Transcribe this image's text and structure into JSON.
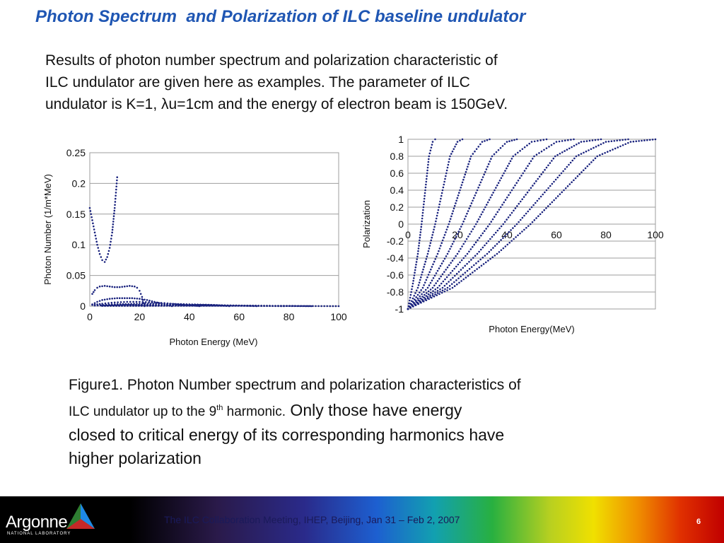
{
  "slide": {
    "title": "Photon Spectrum  and Polarization of ILC baseline undulator",
    "intro_lines": [
      "Results of photon number spectrum and polarization characteristic of",
      "ILC undulator are given here as examples.   The parameter of ILC",
      "undulator is K=1, λu=1cm and the energy of electron beam is 150GeV."
    ]
  },
  "chart_data": [
    {
      "type": "scatter",
      "xlabel": "Photon Energy (MeV)",
      "ylabel": "Photon Number (1/m*MeV)",
      "xlim": [
        0,
        100
      ],
      "ylim": [
        0,
        0.25
      ],
      "xticks": [
        "0",
        "20",
        "40",
        "60",
        "80",
        "100"
      ],
      "yticks": [
        "0",
        "0.05",
        "0.1",
        "0.15",
        "0.2",
        "0.25"
      ],
      "grid": true,
      "color": "#1a237e",
      "series": [
        {
          "x": [
            0,
            1,
            2,
            3,
            4,
            5,
            6,
            7,
            8,
            9,
            10,
            10.5,
            11
          ],
          "values": [
            0.16,
            0.14,
            0.12,
            0.1,
            0.085,
            0.075,
            0.072,
            0.08,
            0.095,
            0.12,
            0.16,
            0.185,
            0.21
          ]
        },
        {
          "x": [
            1,
            2,
            3,
            4,
            6,
            8,
            10,
            12,
            14,
            16,
            18,
            19,
            20,
            21,
            22
          ],
          "values": [
            0.02,
            0.026,
            0.03,
            0.032,
            0.033,
            0.032,
            0.031,
            0.031,
            0.032,
            0.033,
            0.032,
            0.03,
            0.025,
            0.015,
            0
          ]
        },
        {
          "x": [
            1,
            3,
            5,
            8,
            11,
            14,
            17,
            20,
            23,
            26,
            29,
            31,
            33
          ],
          "values": [
            0.003,
            0.007,
            0.01,
            0.012,
            0.013,
            0.013,
            0.013,
            0.012,
            0.01,
            0.007,
            0.004,
            0.002,
            0
          ]
        },
        {
          "x": [
            1,
            5,
            10,
            15,
            20,
            25,
            30,
            35,
            40,
            44
          ],
          "values": [
            0.002,
            0.004,
            0.006,
            0.007,
            0.007,
            0.006,
            0.005,
            0.003,
            0.002,
            0
          ]
        },
        {
          "x": [
            2,
            10,
            20,
            30,
            40,
            50,
            56
          ],
          "values": [
            0.001,
            0.003,
            0.004,
            0.004,
            0.003,
            0.002,
            0
          ]
        },
        {
          "x": [
            2,
            15,
            30,
            45,
            60,
            67
          ],
          "values": [
            0.001,
            0.002,
            0.002,
            0.002,
            0.001,
            0
          ]
        },
        {
          "x": [
            5,
            20,
            40,
            60,
            78
          ],
          "values": [
            0.001,
            0.001,
            0.001,
            0.001,
            0
          ]
        },
        {
          "x": [
            5,
            30,
            60,
            89
          ],
          "values": [
            0.0005,
            0.001,
            0.0008,
            0
          ]
        },
        {
          "x": [
            5,
            40,
            70,
            100
          ],
          "values": [
            0.0005,
            0.0006,
            0.0005,
            0
          ]
        }
      ]
    },
    {
      "type": "scatter",
      "xlabel": "Photon Energy(MeV)",
      "ylabel": "Polarization",
      "xlim": [
        0,
        100
      ],
      "ylim": [
        -1,
        1
      ],
      "xticks": [
        "0",
        "20",
        "40",
        "60",
        "80",
        "100"
      ],
      "yticks": [
        "1",
        "0.8",
        "0.6",
        "0.4",
        "0.2",
        "0",
        "-0.2",
        "-0.4",
        "-0.6",
        "-0.8",
        "-1"
      ],
      "grid": true,
      "color": "#1a237e",
      "series": [
        {
          "x": [
            0,
            2,
            4,
            5.5,
            7,
            8.5,
            10,
            11
          ],
          "values": [
            -1,
            -0.7,
            -0.35,
            0,
            0.4,
            0.8,
            0.97,
            1
          ]
        },
        {
          "x": [
            0,
            4,
            8,
            11,
            14,
            17,
            20,
            22
          ],
          "values": [
            -1,
            -0.75,
            -0.35,
            0,
            0.4,
            0.8,
            0.97,
            1
          ]
        },
        {
          "x": [
            0,
            6,
            12,
            16.5,
            21,
            25.5,
            30,
            33
          ],
          "values": [
            -1,
            -0.75,
            -0.35,
            0,
            0.4,
            0.8,
            0.97,
            1
          ]
        },
        {
          "x": [
            0,
            8,
            16,
            22,
            28,
            34,
            40,
            44
          ],
          "values": [
            -1,
            -0.75,
            -0.35,
            0,
            0.4,
            0.8,
            0.97,
            1
          ]
        },
        {
          "x": [
            0,
            10,
            20,
            27.5,
            35,
            42.5,
            50,
            56
          ],
          "values": [
            -1,
            -0.75,
            -0.35,
            0,
            0.4,
            0.8,
            0.97,
            1
          ]
        },
        {
          "x": [
            0,
            12,
            24,
            33,
            42,
            51,
            60,
            67
          ],
          "values": [
            -1,
            -0.75,
            -0.35,
            0,
            0.4,
            0.8,
            0.97,
            1
          ]
        },
        {
          "x": [
            0,
            14,
            28,
            38.5,
            49,
            59.5,
            70,
            78
          ],
          "values": [
            -1,
            -0.75,
            -0.35,
            0,
            0.4,
            0.8,
            0.97,
            1
          ]
        },
        {
          "x": [
            0,
            16,
            32,
            44,
            56,
            68,
            80,
            89
          ],
          "values": [
            -1,
            -0.75,
            -0.35,
            0,
            0.4,
            0.8,
            0.97,
            1
          ]
        },
        {
          "x": [
            0,
            18,
            36,
            49.5,
            63,
            76.5,
            90,
            100
          ],
          "values": [
            -1,
            -0.75,
            -0.35,
            0,
            0.4,
            0.8,
            0.97,
            1
          ]
        }
      ]
    }
  ],
  "caption": {
    "line1": "Figure1. Photon Number spectrum and polarization characteristics of",
    "line2_small": "ILC undulator up to the 9",
    "line2_sup": "th",
    "line2_small_end": " harmonic.",
    "line2_big": " Only those have energy",
    "line3": "closed to critical energy of its corresponding harmonics have",
    "line4": "higher polarization"
  },
  "footer": {
    "logo": "Argonne",
    "logo_sub": "NATIONAL LABORATORY",
    "meeting": "The ILC Collaboration Meeting, IHEP, Beijing, Jan 31 – Feb 2, 2007",
    "page": "6"
  }
}
